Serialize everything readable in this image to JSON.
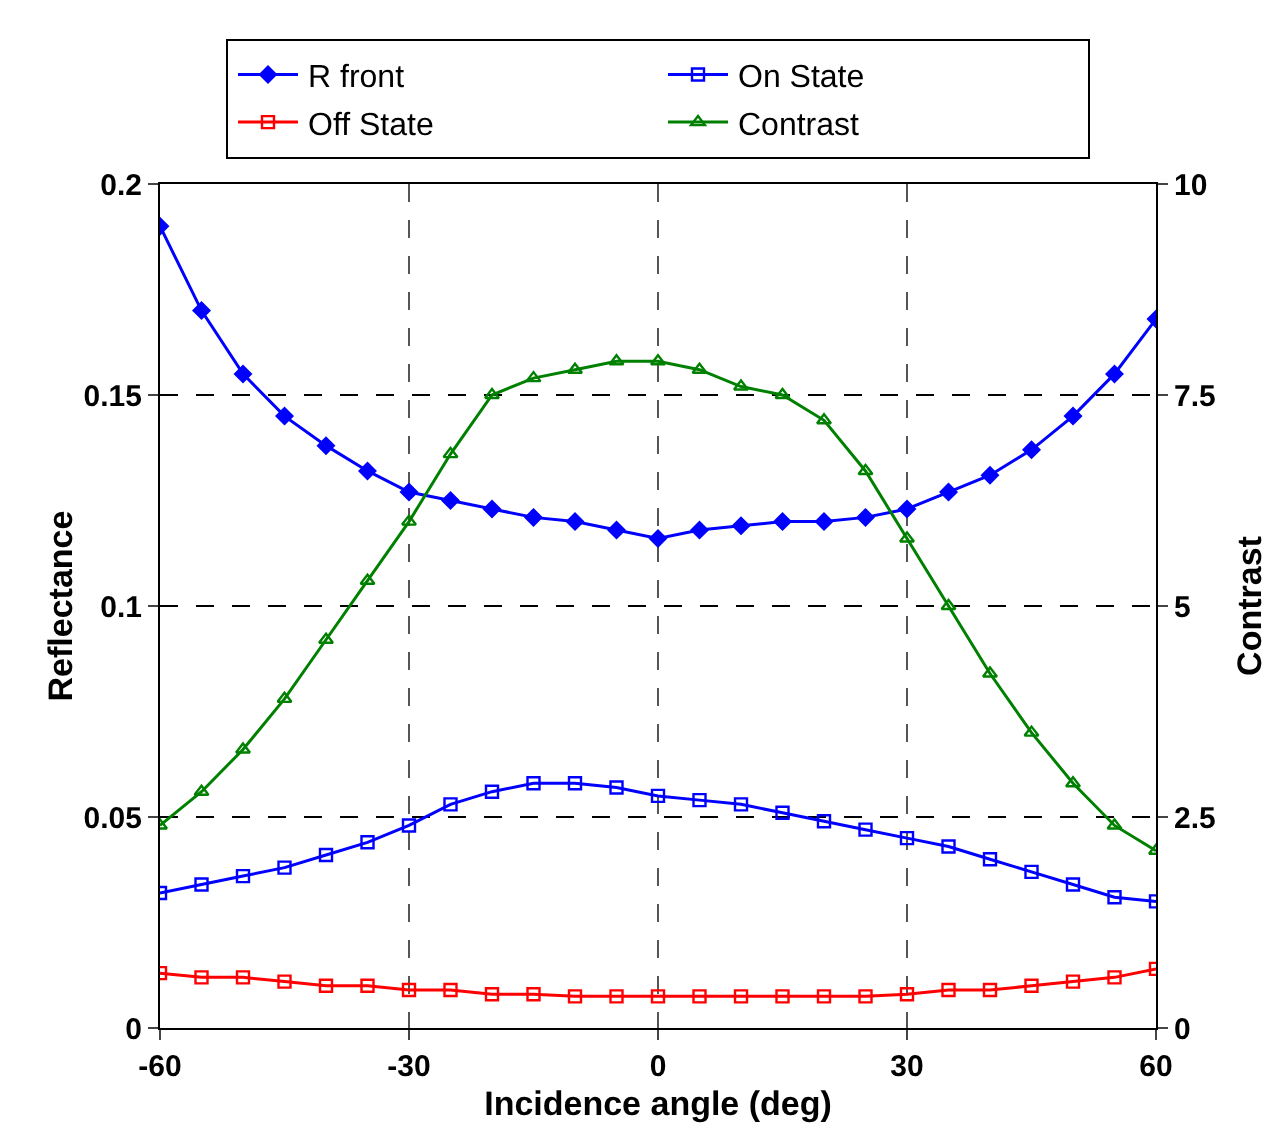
{
  "chart_data": {
    "type": "line",
    "xlabel": "Incidence angle (deg)",
    "ylabel": "Reflectance",
    "y2label": "Contrast",
    "x": [
      -60,
      -55,
      -50,
      -45,
      -40,
      -35,
      -30,
      -25,
      -20,
      -15,
      -10,
      -5,
      0,
      5,
      10,
      15,
      20,
      25,
      30,
      35,
      40,
      45,
      50,
      55,
      60
    ],
    "series": [
      {
        "name": "R front",
        "color": "#0000ff",
        "marker": "diamond",
        "values": [
          0.19,
          0.17,
          0.155,
          0.145,
          0.138,
          0.132,
          0.127,
          0.125,
          0.123,
          0.121,
          0.12,
          0.118,
          0.116,
          0.118,
          0.119,
          0.12,
          0.12,
          0.121,
          0.123,
          0.127,
          0.131,
          0.137,
          0.145,
          0.155,
          0.168
        ]
      },
      {
        "name": "On State",
        "color": "#0000ff",
        "marker": "square",
        "values": [
          0.032,
          0.034,
          0.036,
          0.038,
          0.041,
          0.044,
          0.048,
          0.053,
          0.056,
          0.058,
          0.058,
          0.057,
          0.055,
          0.054,
          0.053,
          0.051,
          0.049,
          0.047,
          0.045,
          0.043,
          0.04,
          0.037,
          0.034,
          0.031,
          0.03
        ]
      },
      {
        "name": "Off State",
        "color": "#ff0000",
        "marker": "square",
        "values": [
          0.013,
          0.012,
          0.012,
          0.011,
          0.01,
          0.01,
          0.009,
          0.009,
          0.008,
          0.008,
          0.0075,
          0.0075,
          0.0075,
          0.0075,
          0.0075,
          0.0075,
          0.0075,
          0.0075,
          0.008,
          0.009,
          0.009,
          0.01,
          0.011,
          0.012,
          0.014
        ]
      },
      {
        "name": "Contrast",
        "color": "#008000",
        "marker": "triangle",
        "axis": "y2",
        "values": [
          2.4,
          2.8,
          3.3,
          3.9,
          4.6,
          5.3,
          6.0,
          6.8,
          7.5,
          7.7,
          7.8,
          7.9,
          7.9,
          7.8,
          7.6,
          7.5,
          7.2,
          6.6,
          5.8,
          5.0,
          4.2,
          3.5,
          2.9,
          2.4,
          2.1
        ]
      }
    ],
    "xlim": [
      -60,
      60
    ],
    "xticks": [
      -60,
      -30,
      0,
      30,
      60
    ],
    "ylim": [
      0,
      0.2
    ],
    "yticks": [
      0,
      0.05,
      0.1,
      0.15,
      0.2
    ],
    "y2lim": [
      0,
      10
    ],
    "y2ticks": [
      0,
      2.5,
      5,
      7.5,
      10
    ],
    "grid": true,
    "legend": "top",
    "line_style": "solid"
  }
}
